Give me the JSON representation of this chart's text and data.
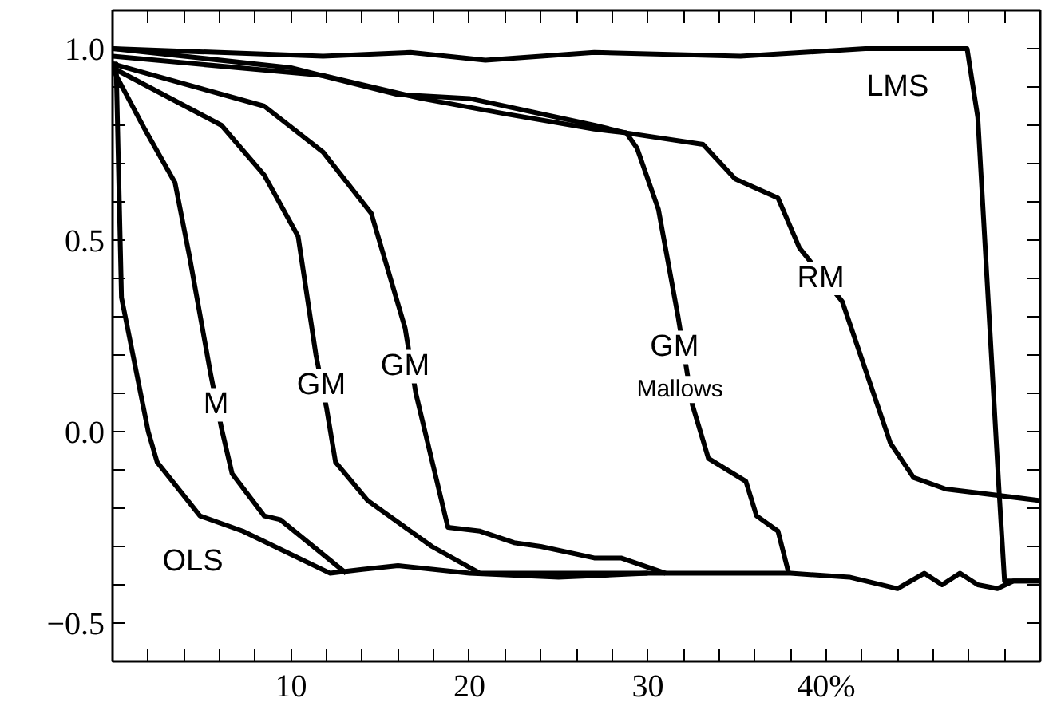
{
  "chart_data": {
    "type": "line",
    "xlim": [
      0,
      52
    ],
    "ylim": [
      -0.6,
      1.1
    ],
    "xticks": [
      {
        "value": 2,
        "label": null
      },
      {
        "value": 4,
        "label": null
      },
      {
        "value": 6,
        "label": null
      },
      {
        "value": 8,
        "label": null
      },
      10,
      {
        "value": 12,
        "label": null
      },
      {
        "value": 14,
        "label": null
      },
      {
        "value": 16,
        "label": null
      },
      {
        "value": 18,
        "label": null
      },
      20,
      {
        "value": 22,
        "label": null
      },
      {
        "value": 24,
        "label": null
      },
      {
        "value": 26,
        "label": null
      },
      {
        "value": 28,
        "label": null
      },
      30,
      {
        "value": 32,
        "label": null
      },
      {
        "value": 34,
        "label": null
      },
      {
        "value": 36,
        "label": null
      },
      {
        "value": 38,
        "label": null
      },
      {
        "value": 40,
        "label": "40%"
      },
      {
        "value": 42,
        "label": null
      },
      {
        "value": 44,
        "label": null
      },
      {
        "value": 46,
        "label": null
      },
      {
        "value": 48,
        "label": null
      },
      {
        "value": 50,
        "label": null
      }
    ],
    "yticks": [
      {
        "value": -0.5,
        "label": "−0.5"
      },
      {
        "value": -0.4,
        "label": null
      },
      {
        "value": -0.3,
        "label": null
      },
      {
        "value": -0.2,
        "label": null
      },
      {
        "value": -0.1,
        "label": null
      },
      {
        "value": 0.0,
        "label": "0.0"
      },
      {
        "value": 0.1,
        "label": null
      },
      {
        "value": 0.2,
        "label": null
      },
      {
        "value": 0.3,
        "label": null
      },
      {
        "value": 0.4,
        "label": null
      },
      {
        "value": 0.5,
        "label": "0.5"
      },
      {
        "value": 0.6,
        "label": null
      },
      {
        "value": 0.7,
        "label": null
      },
      {
        "value": 0.8,
        "label": null
      },
      {
        "value": 0.9,
        "label": null
      },
      {
        "value": 1.0,
        "label": "1.0"
      }
    ],
    "grid": false,
    "marker": "none",
    "line_style": "solid",
    "series": [
      {
        "color": "#000000",
        "x": [
          0,
          0.2,
          0.5,
          2,
          2.5,
          4.9,
          7.3,
          12.2,
          14,
          16,
          20,
          25,
          30,
          35,
          38,
          41.3,
          44,
          45.5,
          46.5,
          47.5,
          48.5,
          49.6,
          50.5,
          52
        ],
        "values": [
          0.96,
          0.96,
          0.35,
          0.0,
          -0.08,
          -0.22,
          -0.26,
          -0.37,
          -0.36,
          -0.35,
          -0.37,
          -0.38,
          -0.37,
          -0.37,
          -0.37,
          -0.38,
          -0.41,
          -0.37,
          -0.4,
          -0.37,
          -0.4,
          -0.41,
          -0.39,
          -0.39
        ]
      },
      {
        "color": "#000000",
        "x": [
          0,
          0.2,
          1.8,
          3.5,
          4.3,
          5.5,
          6.1,
          6.7,
          8.5,
          9.4,
          13.1
        ],
        "values": [
          0.95,
          0.93,
          0.79,
          0.65,
          0.46,
          0.15,
          0.01,
          -0.11,
          -0.22,
          -0.23,
          -0.37
        ]
      },
      {
        "color": "#000000",
        "x": [
          0,
          6.1,
          8.5,
          10.4,
          11.4,
          12.0,
          12.5,
          14.3,
          17.9,
          20.6,
          30
        ],
        "values": [
          0.95,
          0.8,
          0.67,
          0.51,
          0.2,
          0.06,
          -0.08,
          -0.18,
          -0.3,
          -0.37,
          -0.37
        ]
      },
      {
        "color": "#000000",
        "x": [
          0,
          8.5,
          11.8,
          14.5,
          16.4,
          17.0,
          18.8,
          20.6,
          22.5,
          24.0,
          27.0,
          28.5,
          31
        ],
        "values": [
          0.96,
          0.85,
          0.73,
          0.57,
          0.27,
          0.1,
          -0.25,
          -0.26,
          -0.29,
          -0.3,
          -0.33,
          -0.33,
          -0.37
        ]
      },
      {
        "color": "#000000",
        "x": [
          0,
          11.8,
          17.3,
          22,
          27,
          28.8,
          29.4,
          30.6,
          31.7,
          32.5,
          33.4,
          35.5,
          36.1,
          37.3,
          37.9
        ],
        "values": [
          0.98,
          0.93,
          0.87,
          0.83,
          0.79,
          0.78,
          0.74,
          0.58,
          0.3,
          0.07,
          -0.07,
          -0.13,
          -0.22,
          -0.26,
          -0.37
        ]
      },
      {
        "color": "#000000",
        "x": [
          0,
          10,
          16,
          20,
          27,
          28.8,
          33.1,
          34.9,
          37.3,
          38.5,
          40.9,
          43.6,
          44.9,
          46.7,
          52
        ],
        "values": [
          1.0,
          0.95,
          0.88,
          0.87,
          0.8,
          0.78,
          0.75,
          0.66,
          0.61,
          0.48,
          0.34,
          -0.03,
          -0.12,
          -0.15,
          -0.18
        ]
      },
      {
        "color": "#000000",
        "x": [
          0,
          11.8,
          16.7,
          20.9,
          27,
          35.2,
          42.2,
          47.9,
          48.5,
          49.7,
          50,
          52
        ],
        "values": [
          1.0,
          0.98,
          0.99,
          0.97,
          0.99,
          0.98,
          1.0,
          1.0,
          0.82,
          -0.16,
          -0.39,
          -0.39
        ]
      }
    ],
    "annotations": [
      {
        "text": "OLS",
        "x": 4.5,
        "y": -0.34
      },
      {
        "text": "M",
        "x": 5.8,
        "y": 0.07
      },
      {
        "text": "GM",
        "x": 11.7,
        "y": 0.12
      },
      {
        "text": "GM",
        "x": 16.4,
        "y": 0.17
      },
      {
        "text": "GM",
        "x": 31.5,
        "y": 0.22
      },
      {
        "text": "Mallows",
        "x": 31.8,
        "y": 0.11
      },
      {
        "text": "RM",
        "x": 39.7,
        "y": 0.4
      },
      {
        "text": "LMS",
        "x": 44.0,
        "y": 0.9
      }
    ]
  }
}
